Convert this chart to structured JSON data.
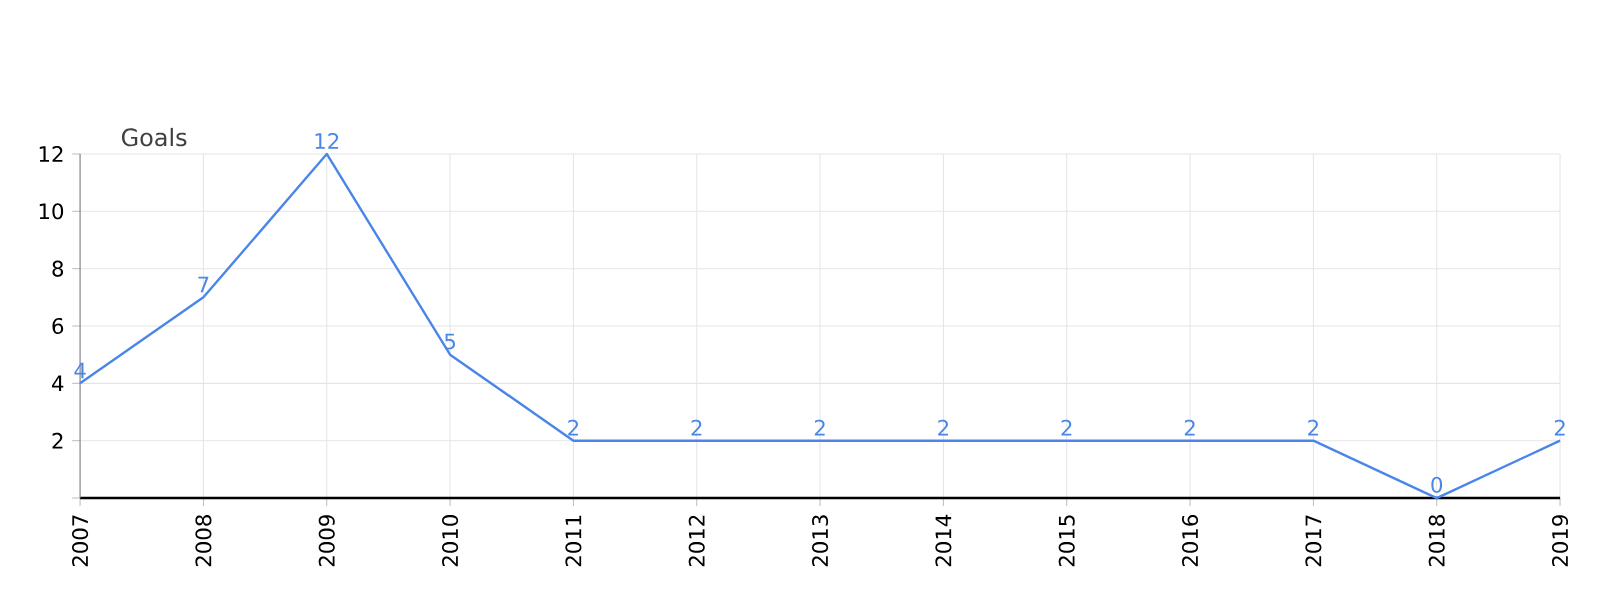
{
  "chart_data": {
    "type": "line",
    "ylabel": "Goals",
    "categories": [
      "2007",
      "2008",
      "2009",
      "2010",
      "2011",
      "2012",
      "2013",
      "2014",
      "2015",
      "2016",
      "2017",
      "2018",
      "2019"
    ],
    "values": [
      4,
      7,
      12,
      5,
      2,
      2,
      2,
      2,
      2,
      2,
      2,
      0,
      2
    ],
    "color": "#4a86e8",
    "data_labels": true,
    "grid": true,
    "marker": "none",
    "line_style": "solid",
    "ylim": [
      0,
      12
    ],
    "yticks": [
      {
        "value": 0,
        "label": null
      },
      2,
      4,
      6,
      8,
      10,
      12
    ]
  }
}
